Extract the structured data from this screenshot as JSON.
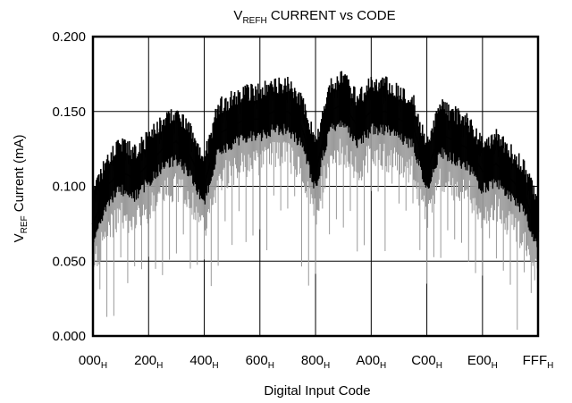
{
  "chart_data": {
    "type": "line",
    "title": {
      "main": "V",
      "sub": "REFH",
      "rest": " CURRENT vs CODE"
    },
    "xlabel": "Digital Input Code",
    "ylabel": {
      "main": "V",
      "sub": "REF",
      "rest": " Current (mA)"
    },
    "ylim": [
      0,
      0.2
    ],
    "xlim": [
      0,
      4095
    ],
    "grid": true,
    "y_ticks": [
      "0.000",
      "0.050",
      "0.100",
      "0.150",
      "0.200"
    ],
    "y_tick_values": [
      0,
      0.05,
      0.1,
      0.15,
      0.2
    ],
    "x_ticks": [
      {
        "main": "000",
        "sub": "H",
        "value": 0
      },
      {
        "main": "200",
        "sub": "H",
        "value": 512
      },
      {
        "main": "400",
        "sub": "H",
        "value": 1024
      },
      {
        "main": "600",
        "sub": "H",
        "value": 1536
      },
      {
        "main": "800",
        "sub": "H",
        "value": 2048
      },
      {
        "main": "A00",
        "sub": "H",
        "value": 2560
      },
      {
        "main": "C00",
        "sub": "H",
        "value": 3072
      },
      {
        "main": "E00",
        "sub": "H",
        "value": 3584
      },
      {
        "main": "FFF",
        "sub": "H",
        "value": 4095
      }
    ],
    "series": [
      {
        "color": "#000000",
        "x": [
          0,
          128,
          256,
          384,
          512,
          640,
          768,
          896,
          1024,
          1152,
          1280,
          1408,
          1536,
          1664,
          1792,
          1920,
          2048,
          2176,
          2304,
          2432,
          2560,
          2688,
          2816,
          2944,
          3072,
          3200,
          3328,
          3456,
          3584,
          3712,
          3840,
          3968,
          4095
        ],
        "y": [
          0.075,
          0.1,
          0.11,
          0.105,
          0.115,
          0.125,
          0.13,
          0.12,
          0.1,
          0.135,
          0.14,
          0.145,
          0.145,
          0.15,
          0.15,
          0.14,
          0.11,
          0.15,
          0.155,
          0.14,
          0.15,
          0.15,
          0.145,
          0.14,
          0.11,
          0.135,
          0.13,
          0.125,
          0.11,
          0.115,
          0.105,
          0.095,
          0.07
        ]
      }
    ]
  }
}
